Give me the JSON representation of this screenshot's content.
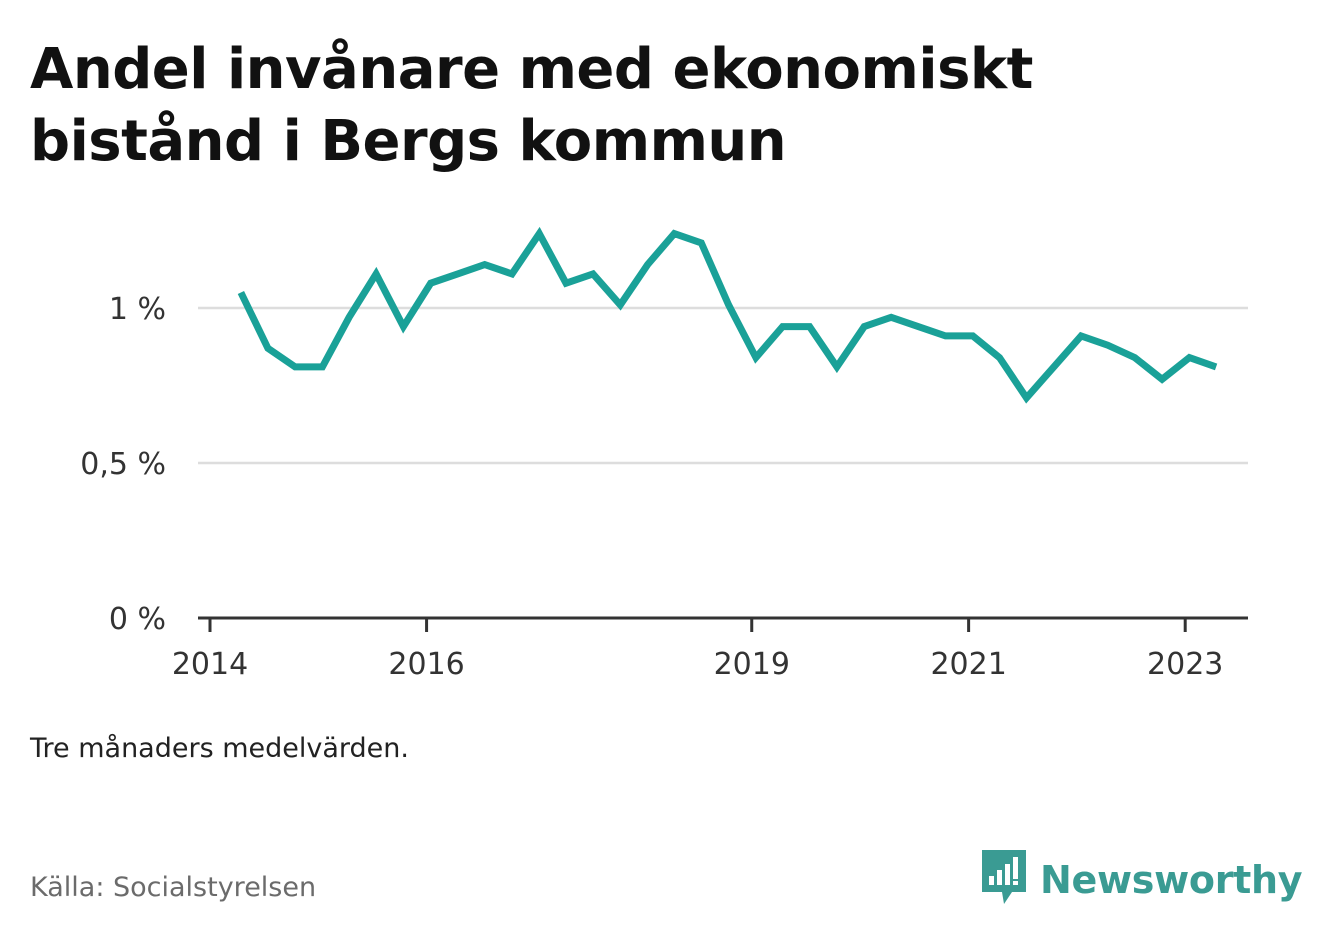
{
  "title": "Andel invånare med ekonomiskt bistånd i Bergs kommun",
  "note": "Tre månaders medelvärden.",
  "source": "Källa: Socialstyrelsen",
  "brand": {
    "name": "Newsworthy",
    "icon": "bar-chart-badge-icon",
    "color": "#3a9b93"
  },
  "chart_data": {
    "type": "line",
    "title": "Andel invånare med ekonomiskt bistånd i Bergs kommun",
    "xlabel": "",
    "ylabel": "",
    "ylim": [
      0,
      1.3
    ],
    "xlim": [
      "2014-01-01",
      "2023-06-01"
    ],
    "grid": true,
    "line_color": "#1aa198",
    "y_ticks": [
      {
        "value": 0,
        "label": "0 %"
      },
      {
        "value": 0.5,
        "label": "0,5 %"
      },
      {
        "value": 1,
        "label": "1 %"
      }
    ],
    "x_ticks": [
      {
        "value": "2014-01-01",
        "label": "2014"
      },
      {
        "value": "2016-01-01",
        "label": "2016"
      },
      {
        "value": "2019-01-01",
        "label": "2019"
      },
      {
        "value": "2021-01-01",
        "label": "2021"
      },
      {
        "value": "2023-01-01",
        "label": "2023"
      }
    ],
    "x": [
      "2014-04-15",
      "2014-07-15",
      "2014-10-15",
      "2015-01-15",
      "2015-04-15",
      "2015-07-15",
      "2015-10-15",
      "2016-01-15",
      "2016-04-15",
      "2016-07-15",
      "2016-10-15",
      "2017-01-15",
      "2017-04-15",
      "2017-07-15",
      "2017-10-15",
      "2018-01-15",
      "2018-04-15",
      "2018-07-15",
      "2018-10-15",
      "2019-01-15",
      "2019-04-15",
      "2019-07-15",
      "2019-10-15",
      "2020-01-15",
      "2020-04-15",
      "2020-07-15",
      "2020-10-15",
      "2021-01-15",
      "2021-04-15",
      "2021-07-15",
      "2021-10-15",
      "2022-01-15",
      "2022-04-15",
      "2022-07-15",
      "2022-10-15",
      "2023-01-15",
      "2023-04-15"
    ],
    "series": [
      {
        "values": [
          1.05,
          0.87,
          0.81,
          0.81,
          0.97,
          1.11,
          0.94,
          1.08,
          1.11,
          1.14,
          1.11,
          1.24,
          1.08,
          1.11,
          1.01,
          1.14,
          1.24,
          1.21,
          1.01,
          0.84,
          0.94,
          0.94,
          0.81,
          0.94,
          0.97,
          0.94,
          0.91,
          0.91,
          0.84,
          0.71,
          0.81,
          0.91,
          0.88,
          0.84,
          0.77,
          0.84,
          0.81
        ]
      }
    ]
  }
}
